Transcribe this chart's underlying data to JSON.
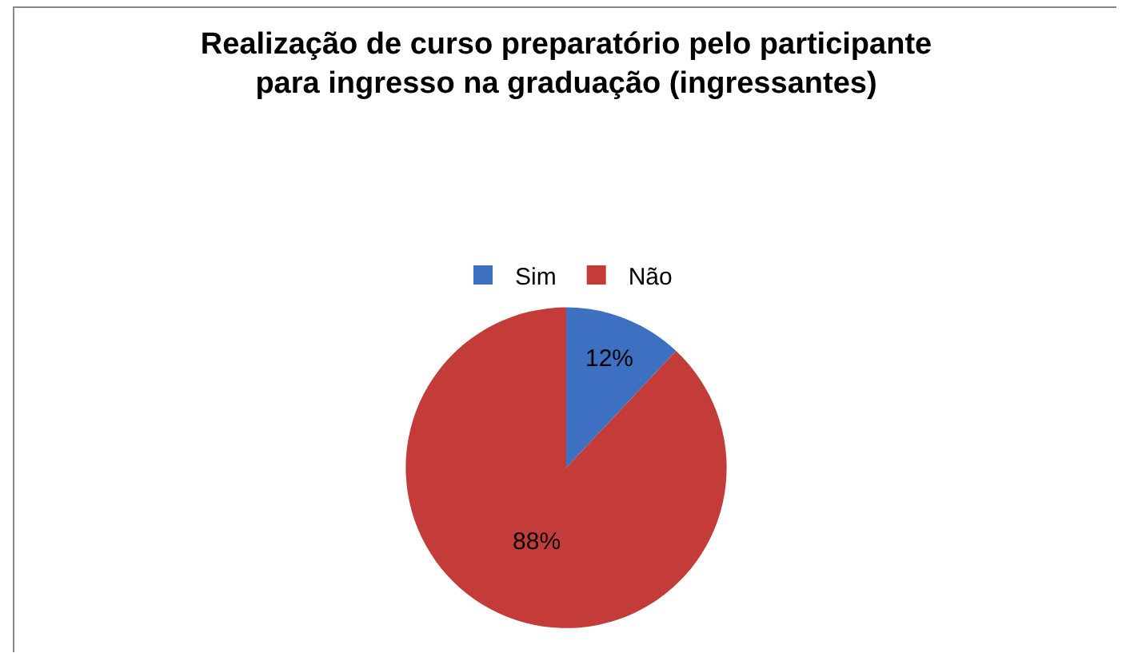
{
  "chart_data": {
    "type": "pie",
    "title": "Realização de curso preparatório pelo participante\npara ingresso na graduação (ingressantes)",
    "categories": [
      "Sim",
      "Não"
    ],
    "values": [
      12,
      88
    ],
    "colors": [
      "#3d70c0",
      "#c43c3a"
    ],
    "value_labels": [
      "12%",
      "88%"
    ],
    "legend": "top"
  }
}
